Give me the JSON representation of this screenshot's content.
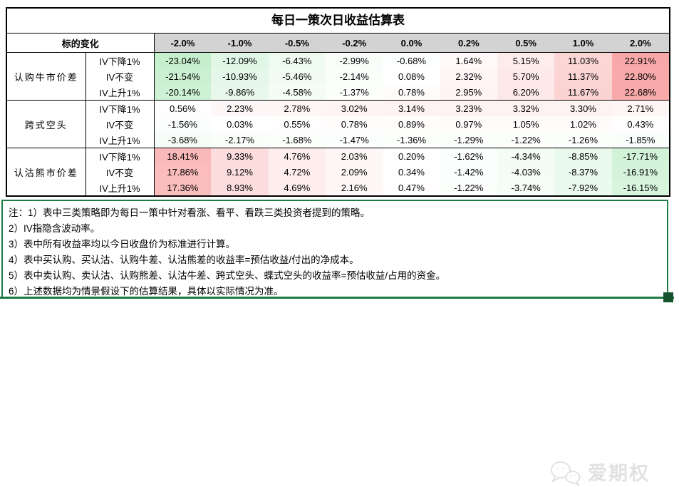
{
  "title": "每日一策次日收益估算表",
  "table": {
    "corner_label": "标的变化",
    "col_headers": [
      "-2.0%",
      "-1.0%",
      "-0.5%",
      "-0.2%",
      "0.0%",
      "0.2%",
      "0.5%",
      "1.0%",
      "2.0%"
    ],
    "iv_labels": [
      "IV下降1%",
      "IV不变",
      "IV上升1%"
    ],
    "groups": [
      {
        "name": "认购牛市价差",
        "rows": [
          [
            "-23.04%",
            "-12.09%",
            "-6.43%",
            "-2.99%",
            "-0.68%",
            "1.64%",
            "5.15%",
            "11.03%",
            "22.91%"
          ],
          [
            "-21.54%",
            "-10.93%",
            "-5.46%",
            "-2.14%",
            "0.08%",
            "2.32%",
            "5.70%",
            "11.37%",
            "22.80%"
          ],
          [
            "-20.14%",
            "-9.86%",
            "-4.58%",
            "-1.37%",
            "0.78%",
            "2.95%",
            "6.20%",
            "11.67%",
            "22.68%"
          ]
        ]
      },
      {
        "name": "跨式空头",
        "rows": [
          [
            "0.56%",
            "2.23%",
            "2.78%",
            "3.02%",
            "3.14%",
            "3.23%",
            "3.32%",
            "3.30%",
            "2.71%"
          ],
          [
            "-1.56%",
            "0.03%",
            "0.55%",
            "0.78%",
            "0.89%",
            "0.97%",
            "1.05%",
            "1.02%",
            "0.43%"
          ],
          [
            "-3.68%",
            "-2.17%",
            "-1.68%",
            "-1.47%",
            "-1.36%",
            "-1.29%",
            "-1.22%",
            "-1.26%",
            "-1.85%"
          ]
        ]
      },
      {
        "name": "认沽熊市价差",
        "rows": [
          [
            "18.41%",
            "9.33%",
            "4.76%",
            "2.03%",
            "0.20%",
            "-1.62%",
            "-4.34%",
            "-8.85%",
            "-17.71%"
          ],
          [
            "17.86%",
            "9.12%",
            "4.72%",
            "2.09%",
            "0.34%",
            "-1.42%",
            "-4.03%",
            "-8.37%",
            "-16.91%"
          ],
          [
            "17.36%",
            "8.93%",
            "4.69%",
            "2.16%",
            "0.47%",
            "-1.22%",
            "-3.74%",
            "-7.92%",
            "-16.15%"
          ]
        ]
      }
    ]
  },
  "notes": [
    "注：1）表中三类策略即为每日一策中针对看涨、看平、看跌三类投资者提到的策略。",
    "2）IV指隐含波动率。",
    "3）表中所有收益率均以今日收盘价为标准进行计算。",
    "4）表中买认购、买认沽、认购牛差、认沽熊差的收益率=预估收益/付出的净成本。",
    "5）表中卖认购、卖认沽、认购熊差、认沽牛差、跨式空头、蝶式空头的收益率=预估收益/占用的资金。",
    "6）上述数据均为情景假设下的估算结果，具体以实际情况为准。"
  ],
  "watermark": {
    "text": "爱期权",
    "icon": "wechat-chat-bubbles-icon"
  },
  "colors": {
    "header_bg": "#d3d3d3",
    "table_border": "#000000",
    "note_border": "#1e7b45",
    "positive_max_color": "#f8a8a8",
    "negative_max_color": "#c6efce",
    "scale_abs_max": 23.04
  },
  "chart_data": {
    "type": "table",
    "title": "每日一策次日收益估算表",
    "col_axis_label": "标的变化",
    "columns_pct": [
      -2.0,
      -1.0,
      -0.5,
      -0.2,
      0.0,
      0.2,
      0.5,
      1.0,
      2.0
    ],
    "rows": [
      {
        "strategy": "认购牛市价差",
        "iv_change": "IV下降1%",
        "values_pct": [
          -23.04,
          -12.09,
          -6.43,
          -2.99,
          -0.68,
          1.64,
          5.15,
          11.03,
          22.91
        ]
      },
      {
        "strategy": "认购牛市价差",
        "iv_change": "IV不变",
        "values_pct": [
          -21.54,
          -10.93,
          -5.46,
          -2.14,
          0.08,
          2.32,
          5.7,
          11.37,
          22.8
        ]
      },
      {
        "strategy": "认购牛市价差",
        "iv_change": "IV上升1%",
        "values_pct": [
          -20.14,
          -9.86,
          -4.58,
          -1.37,
          0.78,
          2.95,
          6.2,
          11.67,
          22.68
        ]
      },
      {
        "strategy": "跨式空头",
        "iv_change": "IV下降1%",
        "values_pct": [
          0.56,
          2.23,
          2.78,
          3.02,
          3.14,
          3.23,
          3.32,
          3.3,
          2.71
        ]
      },
      {
        "strategy": "跨式空头",
        "iv_change": "IV不变",
        "values_pct": [
          -1.56,
          0.03,
          0.55,
          0.78,
          0.89,
          0.97,
          1.05,
          1.02,
          0.43
        ]
      },
      {
        "strategy": "跨式空头",
        "iv_change": "IV上升1%",
        "values_pct": [
          -3.68,
          -2.17,
          -1.68,
          -1.47,
          -1.36,
          -1.29,
          -1.22,
          -1.26,
          -1.85
        ]
      },
      {
        "strategy": "认沽熊市价差",
        "iv_change": "IV下降1%",
        "values_pct": [
          18.41,
          9.33,
          4.76,
          2.03,
          0.2,
          -1.62,
          -4.34,
          -8.85,
          -17.71
        ]
      },
      {
        "strategy": "认沽熊市价差",
        "iv_change": "IV不变",
        "values_pct": [
          17.86,
          9.12,
          4.72,
          2.09,
          0.34,
          -1.42,
          -4.03,
          -8.37,
          -16.91
        ]
      },
      {
        "strategy": "认沽熊市价差",
        "iv_change": "IV上升1%",
        "values_pct": [
          17.36,
          8.93,
          4.69,
          2.16,
          0.47,
          -1.22,
          -3.74,
          -7.92,
          -16.15
        ]
      }
    ],
    "style": "heatmap: positive values shaded red, negative values shaded green, intensity proportional to |value| up to 23.04"
  }
}
